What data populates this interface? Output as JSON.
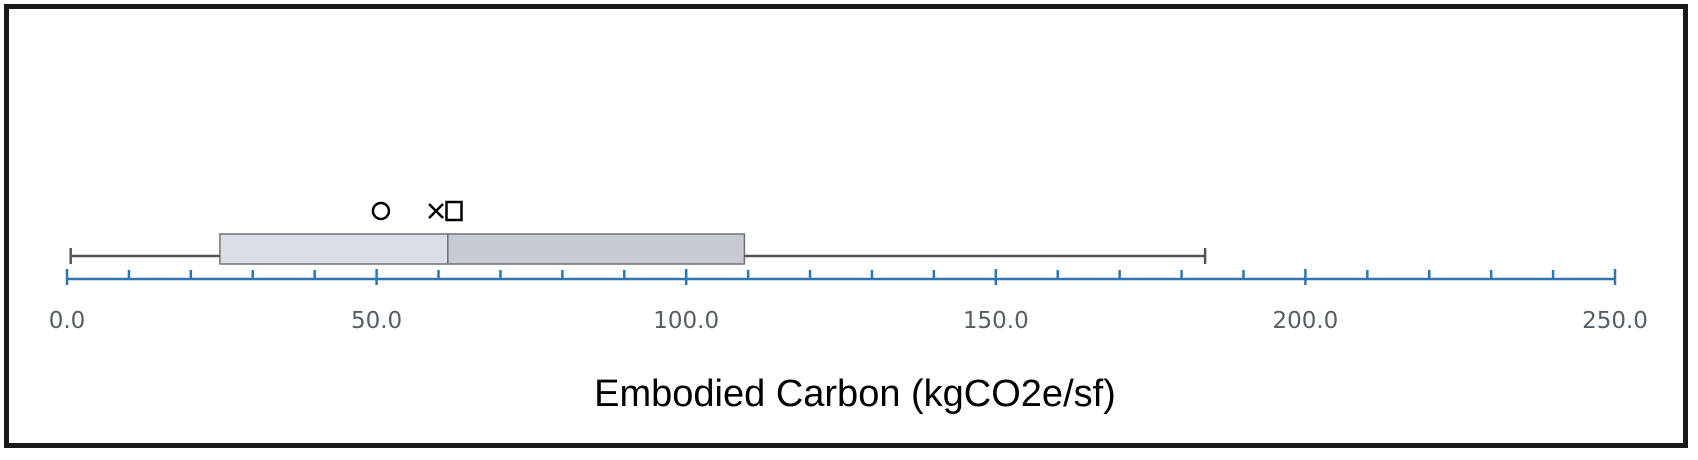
{
  "chart_data": {
    "type": "boxplot",
    "xlabel": "Embodied Carbon (kgCO2e/sf)",
    "xlim": [
      0,
      250
    ],
    "major_ticks": [
      0,
      50,
      100,
      150,
      200,
      250
    ],
    "tick_labels": [
      "0.0",
      "50.0",
      "100.0",
      "150.0",
      "200.0",
      "250.0"
    ],
    "minor_tick_step": 10,
    "box": {
      "min": 0.6,
      "q1": 24.7,
      "median": 61.5,
      "q3": 109.4,
      "max": 183.8
    },
    "markers": [
      {
        "symbol": "circle",
        "value": 50.7
      },
      {
        "symbol": "x",
        "value": 59.6
      },
      {
        "symbol": "square",
        "value": 62.5
      }
    ],
    "colors": {
      "axis": "#2e75b6",
      "box_left": "#dadee5",
      "box_right": "#c6cbd2",
      "box_border": "#6e7378",
      "whisker": "#555555",
      "marker": "#000000",
      "frame": "#1a1a1a"
    }
  }
}
